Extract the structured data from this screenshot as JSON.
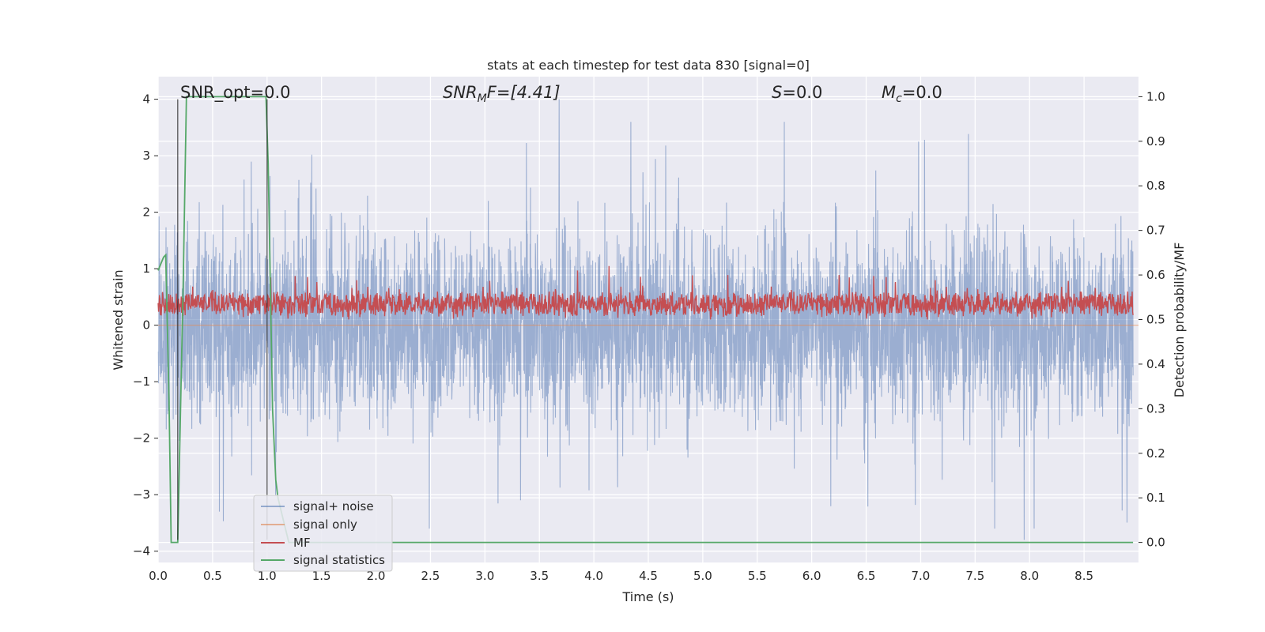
{
  "chart_data": {
    "type": "line",
    "title": "stats at each timestep for test data 830 [signal=0]",
    "xlabel": "Time (s)",
    "ylabel": "Whitened strain",
    "ylabel_right": "Detection probability/MF",
    "xlim": [
      0,
      9.0
    ],
    "ylim": [
      -4.2,
      4.4
    ],
    "ylim_right": [
      -0.045,
      1.045
    ],
    "x_ticks": [
      "0.0",
      "0.5",
      "1.0",
      "1.5",
      "2.0",
      "2.5",
      "3.0",
      "3.5",
      "4.0",
      "4.5",
      "5.0",
      "5.5",
      "6.0",
      "6.5",
      "7.0",
      "7.5",
      "8.0",
      "8.5"
    ],
    "y_ticks": [
      "4",
      "3",
      "2",
      "1",
      "0",
      "−1",
      "−2",
      "−3",
      "−4"
    ],
    "y_ticks_right": [
      "1.0",
      "0.9",
      "0.8",
      "0.7",
      "0.6",
      "0.5",
      "0.4",
      "0.3",
      "0.2",
      "0.1",
      "0.0"
    ],
    "grid": true,
    "background": "#eaeaf2",
    "legend_position": "lower-left",
    "annotations": {
      "snr_opt": "SNR_opt=0.0",
      "snr_mf_main": "SNR",
      "snr_mf_sub": "M",
      "snr_mf_tail": "F=[4.41]",
      "s_var": "S",
      "s_tail": "=0.0",
      "mc_var": "M",
      "mc_sub": "c",
      "mc_tail": "=0.0"
    },
    "series": [
      {
        "name": "signal+ noise",
        "color": "#4c72b0",
        "axis": "left",
        "description": "white noise, 8192 samples over 0–9 s, typical amplitude ±1.5, peaks near ±3–4",
        "highlight_points": [
          [
            3.68,
            4.0
          ],
          [
            7.95,
            -3.8
          ],
          [
            6.98,
            3.25
          ],
          [
            6.95,
            -3.18
          ],
          [
            4.66,
            3.18
          ],
          [
            8.85,
            -3.28
          ]
        ]
      },
      {
        "name": "signal only",
        "color": "#dd8452",
        "axis": "left",
        "x": [
          0,
          9.0
        ],
        "y": [
          0,
          0
        ]
      },
      {
        "name": "MF",
        "color": "#c44e52",
        "axis": "right",
        "description": "matched filter output, mostly 0.50–0.58 on right axis, peaks to about 0.61",
        "highlight_points": [
          [
            3.85,
            0.61
          ],
          [
            4.14,
            0.62
          ],
          [
            6.25,
            0.6
          ],
          [
            5.23,
            0.6
          ]
        ]
      },
      {
        "name": "signal statistics",
        "color": "#55a868",
        "axis": "right",
        "x": [
          0.0,
          0.05,
          0.07,
          0.1,
          0.12,
          0.18,
          0.23,
          0.26,
          0.35,
          0.5,
          0.7,
          0.9,
          0.99,
          1.01,
          1.05,
          1.08,
          1.1,
          1.15,
          1.2,
          2.0,
          3.0,
          4.0,
          5.0,
          6.0,
          7.0,
          8.0,
          8.95
        ],
        "y": [
          0.61,
          0.64,
          0.645,
          0.32,
          0.0,
          0.0,
          0.58,
          1.0,
          1.0,
          1.0,
          1.0,
          1.0,
          1.0,
          0.85,
          0.3,
          0.14,
          0.1,
          0.05,
          0.0,
          0.0,
          0.0,
          0.0,
          0.0,
          0.0,
          0.0,
          0.0,
          0.0
        ]
      }
    ],
    "vertical_lines": [
      {
        "x": 0.18,
        "color": "#222222"
      },
      {
        "x": 1.0,
        "color": "#222222"
      }
    ]
  }
}
